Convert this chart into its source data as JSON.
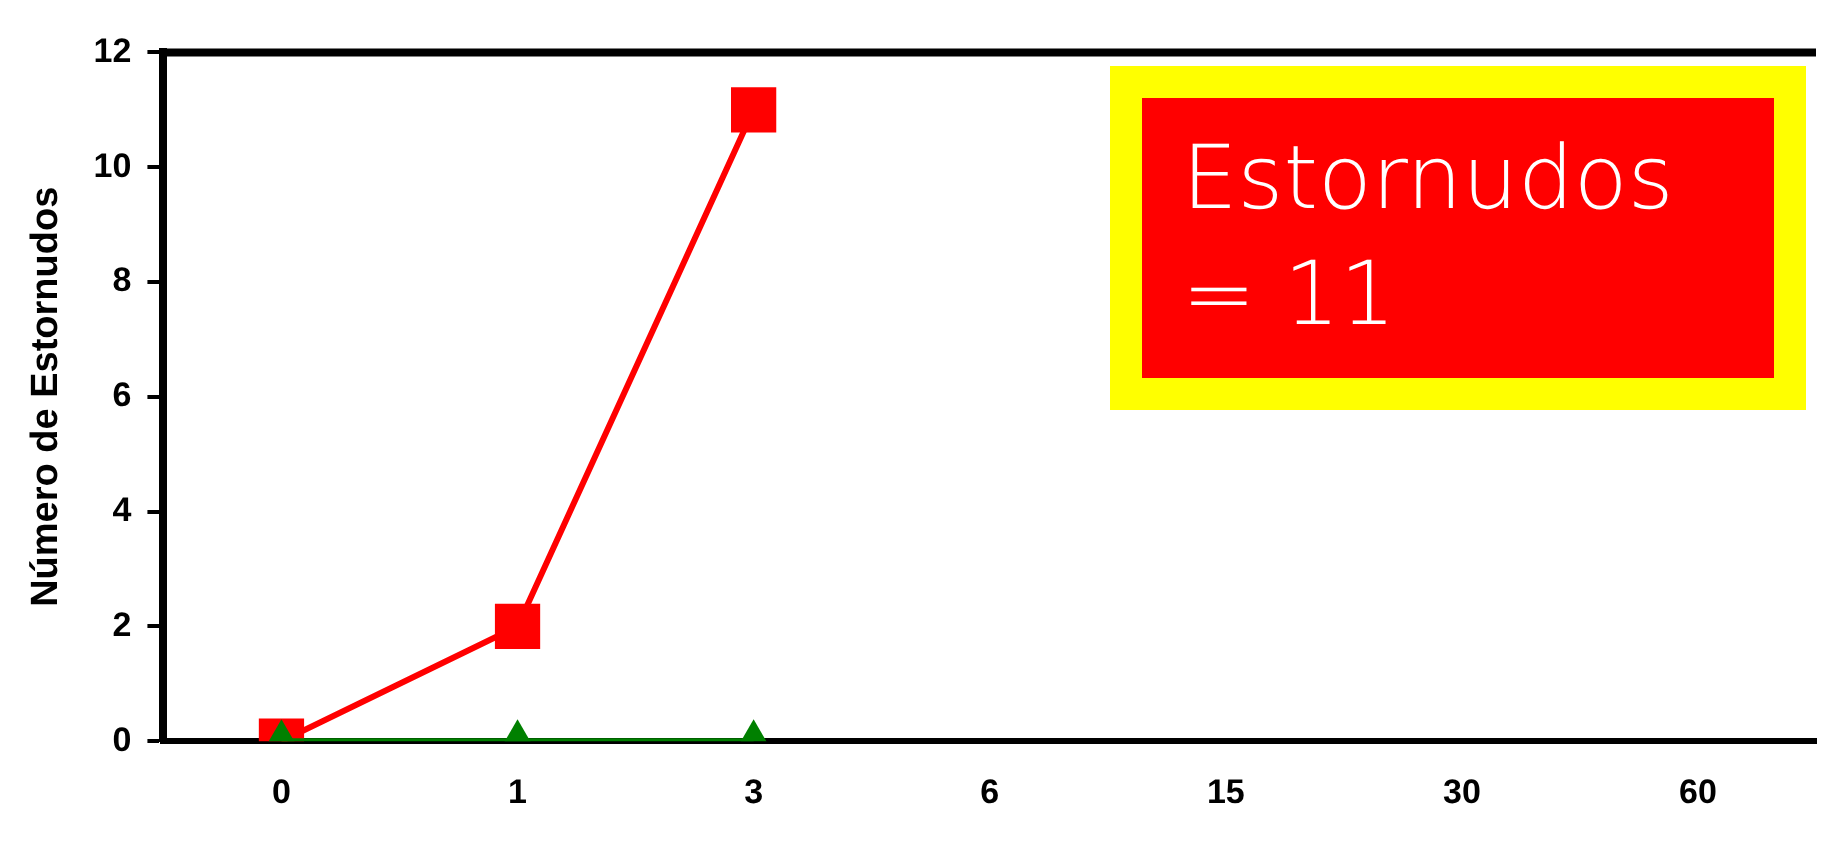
{
  "chart_data": {
    "type": "line",
    "ylabel": "Número de Estornudos",
    "categories": [
      "0",
      "1",
      "3",
      "6",
      "15",
      "30",
      "60"
    ],
    "series": [
      {
        "color": "#ff0000",
        "marker": "square",
        "values": [
          0,
          2,
          11,
          null,
          null,
          null,
          null
        ]
      },
      {
        "color": "#008000",
        "marker": "triangle",
        "values": [
          0,
          0,
          0,
          null,
          null,
          null,
          null
        ]
      }
    ],
    "ylim": [
      0,
      12
    ],
    "yticks": [
      0,
      2,
      4,
      6,
      8,
      10,
      12
    ],
    "grid": false,
    "legend": false,
    "line_style": "solid",
    "annotations": [
      "Estornudos = 11"
    ]
  }
}
